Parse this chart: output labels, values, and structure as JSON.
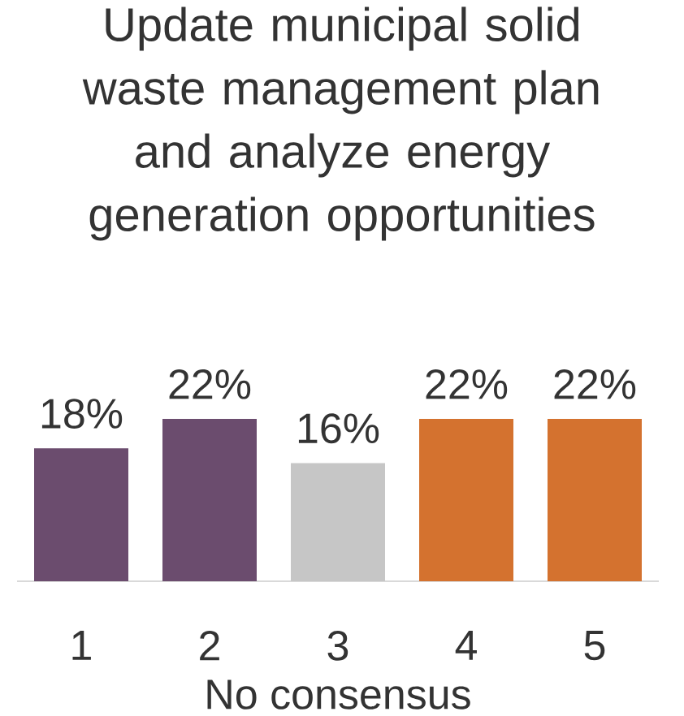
{
  "chart_data": {
    "type": "bar",
    "title": "Update municipal solid waste management plan and analyze energy generation opportunities",
    "xlabel": "No consensus",
    "categories": [
      "1",
      "2",
      "3",
      "4",
      "5"
    ],
    "values": [
      18,
      22,
      16,
      22,
      22
    ],
    "value_labels": [
      "18%",
      "22%",
      "16%",
      "22%",
      "22%"
    ],
    "colors": [
      "#6b4c6e",
      "#6b4c6e",
      "#c6c6c6",
      "#d4722f",
      "#d4722f"
    ]
  }
}
